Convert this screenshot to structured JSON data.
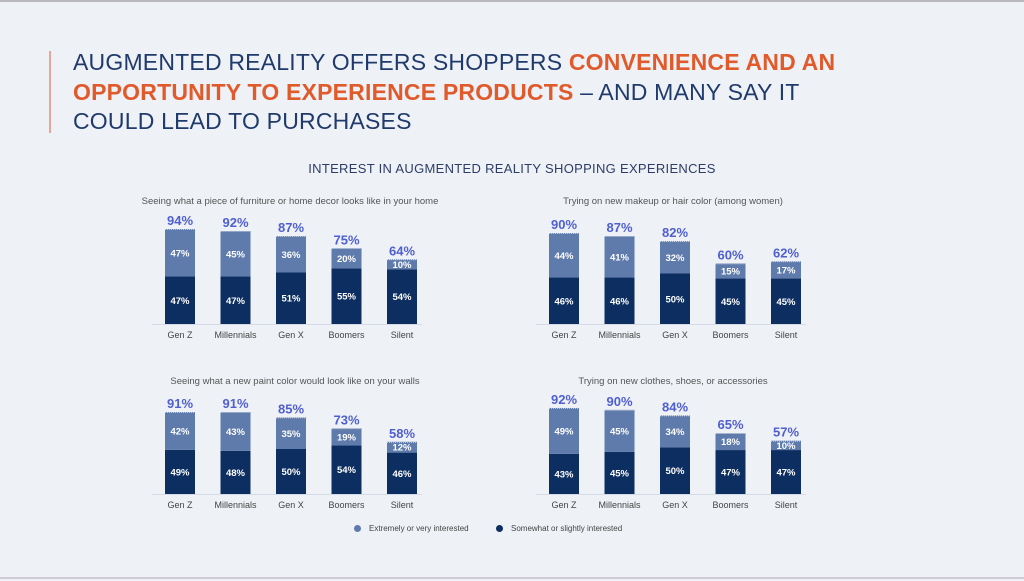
{
  "headline": {
    "part1": "AUGMENTED REALITY OFFERS SHOPPERS ",
    "highlight": "CONVENIENCE AND AN OPPORTUNITY TO EXPERIENCE PRODUCTS",
    "part2": " – AND MANY SAY IT COULD LEAD TO PURCHASES"
  },
  "colors": {
    "background": "#eef1f6",
    "headline": "#1f3a6b",
    "highlight": "#e05a2b",
    "extremely": "#5f7bab",
    "somewhat": "#0d2e60",
    "total_label": "#4f5fd0"
  },
  "legend": [
    {
      "label": "Extremely or very interested",
      "color": "#5f7bab"
    },
    {
      "label": "Somewhat or slightly interested",
      "color": "#0d2e60"
    }
  ],
  "chart_data": [
    {
      "type": "bar",
      "stacked": true,
      "title": "Seeing what a piece of furniture or home decor looks like in your home",
      "categories": [
        "Gen Z",
        "Millennials",
        "Gen X",
        "Boomers",
        "Silent"
      ],
      "totals": [
        94,
        92,
        87,
        75,
        64
      ],
      "series": [
        {
          "name": "Somewhat or slightly interested",
          "values": [
            47,
            47,
            51,
            55,
            54
          ]
        },
        {
          "name": "Extremely or very interested",
          "values": [
            47,
            45,
            36,
            20,
            10
          ]
        }
      ],
      "unit": "%"
    },
    {
      "type": "bar",
      "stacked": true,
      "title": "Trying on new makeup or hair color (among women)",
      "categories": [
        "Gen Z",
        "Millennials",
        "Gen X",
        "Boomers",
        "Silent"
      ],
      "totals": [
        90,
        87,
        82,
        60,
        62
      ],
      "series": [
        {
          "name": "Somewhat or slightly interested",
          "values": [
            46,
            46,
            50,
            45,
            45
          ]
        },
        {
          "name": "Extremely or very interested",
          "values": [
            44,
            41,
            32,
            15,
            17
          ]
        }
      ],
      "unit": "%"
    },
    {
      "type": "bar",
      "stacked": true,
      "title": "Seeing what a new paint color would look like on your walls",
      "categories": [
        "Gen Z",
        "Millennials",
        "Gen X",
        "Boomers",
        "Silent"
      ],
      "totals": [
        91,
        91,
        85,
        73,
        58
      ],
      "series": [
        {
          "name": "Somewhat or slightly interested",
          "values": [
            49,
            48,
            50,
            54,
            46
          ]
        },
        {
          "name": "Extremely or very interested",
          "values": [
            42,
            43,
            35,
            19,
            12
          ]
        }
      ],
      "unit": "%"
    },
    {
      "type": "bar",
      "stacked": true,
      "title": "Trying on new clothes, shoes, or accessories",
      "categories": [
        "Gen Z",
        "Millennials",
        "Gen X",
        "Boomers",
        "Silent"
      ],
      "totals": [
        92,
        90,
        84,
        65,
        57
      ],
      "series": [
        {
          "name": "Somewhat or slightly interested",
          "values": [
            43,
            45,
            50,
            47,
            47
          ]
        },
        {
          "name": "Extremely or very interested",
          "values": [
            49,
            45,
            34,
            18,
            10
          ]
        }
      ],
      "unit": "%"
    }
  ],
  "main_title": "INTEREST IN AUGMENTED REALITY SHOPPING EXPERIENCES"
}
